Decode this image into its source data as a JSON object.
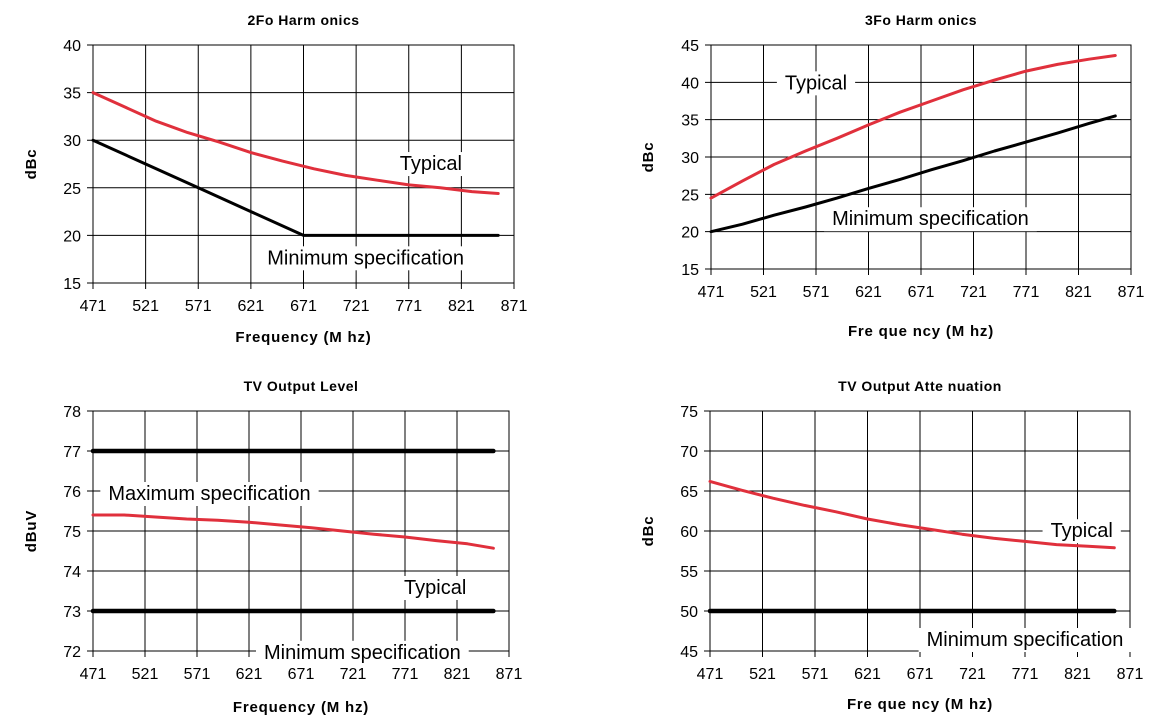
{
  "colors": {
    "typical": "#e0303c",
    "spec": "#000000",
    "grid": "#000000",
    "background": "#ffffff"
  },
  "chart_data": [
    {
      "type": "line",
      "title": "2Fo Harm onics",
      "xlabel": "Frequency (M hz)",
      "ylabel": "dBc",
      "xlim": [
        471,
        871
      ],
      "ylim": [
        15,
        40
      ],
      "xticks": [
        471,
        521,
        571,
        621,
        671,
        721,
        771,
        821,
        871
      ],
      "yticks": [
        15,
        20,
        25,
        30,
        35,
        40
      ],
      "xtick_labels": [
        "471",
        "521",
        "571",
        "621",
        "671",
        "721",
        "771",
        "821",
        "871"
      ],
      "ytick_labels": [
        "15",
        "20",
        "25",
        "30",
        "35",
        "40"
      ],
      "grid": true,
      "series": [
        {
          "role": "typical",
          "x": [
            471,
            501,
            531,
            561,
            591,
            621,
            651,
            681,
            711,
            741,
            771,
            801,
            831,
            856
          ],
          "y": [
            35.0,
            33.5,
            32.0,
            30.8,
            29.8,
            28.7,
            27.8,
            27.0,
            26.3,
            25.8,
            25.3,
            25.0,
            24.6,
            24.4
          ]
        },
        {
          "role": "spec",
          "x": [
            471,
            521,
            571,
            621,
            671,
            721,
            771,
            821,
            856
          ],
          "y": [
            30.0,
            27.5,
            25.0,
            22.5,
            20.0,
            20.0,
            20.0,
            20.0,
            20.0
          ]
        }
      ],
      "annotations": [
        {
          "text": "Typical",
          "x": 792,
          "y": 27.6
        },
        {
          "text": "Minimum specification",
          "x": 730,
          "y": 17.7
        }
      ]
    },
    {
      "type": "line",
      "title": "3Fo Harm onics",
      "xlabel": "Fre que ncy (M hz)",
      "ylabel": "dBc",
      "xlim": [
        471,
        871
      ],
      "ylim": [
        15,
        45
      ],
      "xticks": [
        471,
        521,
        571,
        621,
        671,
        721,
        771,
        821,
        871
      ],
      "yticks": [
        15,
        20,
        25,
        30,
        35,
        40,
        45
      ],
      "xtick_labels": [
        "471",
        "521",
        "571",
        "621",
        "671",
        "721",
        "771",
        "821",
        "871"
      ],
      "ytick_labels": [
        "15",
        "20",
        "25",
        "30",
        "35",
        "40",
        "45"
      ],
      "grid": true,
      "series": [
        {
          "role": "typical",
          "x": [
            471,
            501,
            531,
            561,
            591,
            621,
            651,
            681,
            711,
            741,
            771,
            801,
            831,
            856
          ],
          "y": [
            24.5,
            26.8,
            29.0,
            30.8,
            32.5,
            34.3,
            36.0,
            37.5,
            39.0,
            40.3,
            41.5,
            42.4,
            43.1,
            43.6
          ]
        },
        {
          "role": "spec",
          "x": [
            471,
            501,
            531,
            561,
            591,
            621,
            651,
            681,
            711,
            741,
            771,
            801,
            831,
            856
          ],
          "y": [
            20.0,
            21.0,
            22.2,
            23.3,
            24.5,
            25.8,
            27.0,
            28.3,
            29.5,
            30.8,
            32.0,
            33.2,
            34.5,
            35.5
          ]
        }
      ],
      "annotations": [
        {
          "text": "Typical",
          "x": 571,
          "y": 40.0
        },
        {
          "text": "Minimum specification",
          "x": 680,
          "y": 21.8
        }
      ]
    },
    {
      "type": "line",
      "title": "TV Output Level",
      "xlabel": "Frequency (M hz)",
      "ylabel": "dBuV",
      "xlim": [
        471,
        871
      ],
      "ylim": [
        72,
        78
      ],
      "xticks": [
        471,
        521,
        571,
        621,
        671,
        721,
        771,
        821,
        871
      ],
      "yticks": [
        72,
        73,
        74,
        75,
        76,
        77,
        78
      ],
      "xtick_labels": [
        "471",
        "521",
        "571",
        "621",
        "671",
        "721",
        "771",
        "821",
        "871"
      ],
      "ytick_labels": [
        "72",
        "73",
        "74",
        "75",
        "76",
        "77",
        "78"
      ],
      "grid": true,
      "series": [
        {
          "role": "typical",
          "x": [
            471,
            501,
            531,
            561,
            591,
            621,
            651,
            681,
            711,
            741,
            771,
            801,
            831,
            856
          ],
          "y": [
            75.4,
            75.4,
            75.35,
            75.3,
            75.27,
            75.22,
            75.15,
            75.08,
            75.0,
            74.92,
            74.85,
            74.76,
            74.68,
            74.57
          ]
        },
        {
          "role": "spec",
          "x": [
            471,
            856
          ],
          "y": [
            77.0,
            77.0
          ]
        },
        {
          "role": "spec",
          "x": [
            471,
            856
          ],
          "y": [
            73.0,
            73.0
          ]
        }
      ],
      "annotations": [
        {
          "text": "Maximum specification",
          "x": 583,
          "y": 75.95
        },
        {
          "text": "Typical",
          "x": 800,
          "y": 73.6
        },
        {
          "text": "Minimum specification",
          "x": 730,
          "y": 71.98
        }
      ]
    },
    {
      "type": "line",
      "title": "TV Output Atte nuation",
      "xlabel": "Fre que ncy (M hz)",
      "ylabel": "dBc",
      "xlim": [
        471,
        871
      ],
      "ylim": [
        45,
        75
      ],
      "xticks": [
        471,
        521,
        571,
        621,
        671,
        721,
        771,
        821,
        871
      ],
      "yticks": [
        45,
        50,
        55,
        60,
        65,
        70,
        75
      ],
      "xtick_labels": [
        "471",
        "521",
        "571",
        "621",
        "671",
        "721",
        "771",
        "821",
        "871"
      ],
      "ytick_labels": [
        "45",
        "50",
        "55",
        "60",
        "65",
        "70",
        "75"
      ],
      "grid": true,
      "series": [
        {
          "role": "typical",
          "x": [
            471,
            501,
            531,
            561,
            591,
            621,
            651,
            681,
            711,
            741,
            771,
            801,
            831,
            856
          ],
          "y": [
            66.2,
            65.1,
            64.1,
            63.2,
            62.4,
            61.5,
            60.8,
            60.2,
            59.6,
            59.1,
            58.7,
            58.3,
            58.1,
            57.9
          ]
        },
        {
          "role": "spec",
          "x": [
            471,
            856
          ],
          "y": [
            50.0,
            50.0
          ]
        }
      ],
      "annotations": [
        {
          "text": "Typical",
          "x": 825,
          "y": 60.1
        },
        {
          "text": "Minimum specification",
          "x": 771,
          "y": 46.5
        }
      ]
    }
  ]
}
